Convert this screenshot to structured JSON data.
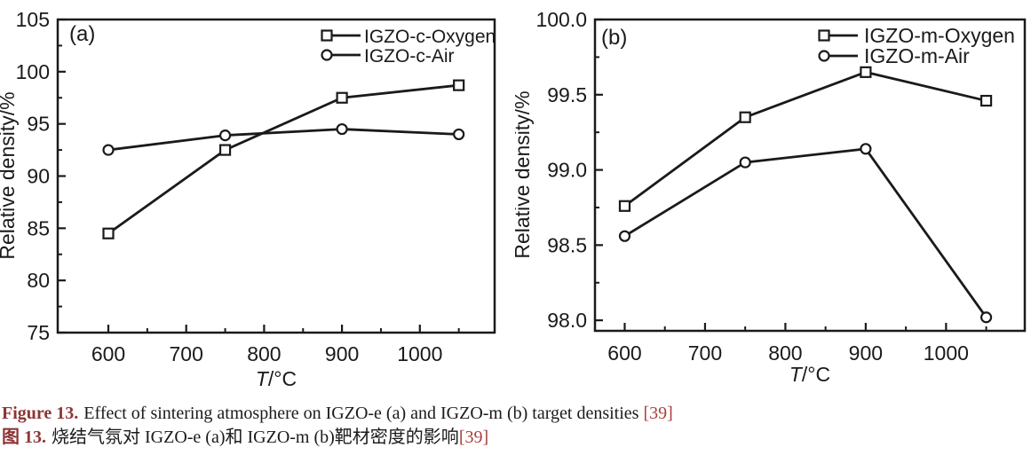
{
  "page": {
    "background": "#ffffff"
  },
  "colors": {
    "ink": "#1a1a1a",
    "caption_label": "#8d3536",
    "reference": "#a8403c"
  },
  "caption": {
    "en": {
      "label": "Figure 13.",
      "text": "Effect of sintering atmosphere on IGZO-e (a) and IGZO-m (b) target densities",
      "ref": "[39]"
    },
    "zh": {
      "label": "图 13.",
      "text": "烧结气氛对 IGZO-e (a)和 IGZO-m (b)靶材密度的影响",
      "ref": "[39]"
    }
  },
  "chart_data": [
    {
      "type": "line",
      "panel_label": "(a)",
      "xlabel": "T/°C",
      "ylabel": "Relative density/%",
      "x": [
        600,
        750,
        900,
        1050
      ],
      "series": [
        {
          "name": "IGZO-c-Oxygen",
          "marker": "square",
          "values": [
            84.5,
            92.5,
            97.5,
            98.7
          ]
        },
        {
          "name": "IGZO-c-Air",
          "marker": "circle",
          "values": [
            92.5,
            93.9,
            94.5,
            94.0
          ]
        }
      ],
      "xlim": [
        535,
        1096
      ],
      "ylim": [
        75,
        105
      ],
      "x_major_ticks": [
        600,
        700,
        800,
        900,
        1000
      ],
      "x_major_labels": [
        "600",
        "700",
        "800",
        "900",
        "1000"
      ],
      "x_minor_ticks": [
        650,
        750,
        850,
        950,
        1050
      ],
      "y_major_ticks": [
        75,
        80,
        85,
        90,
        95,
        100,
        105
      ],
      "y_major_labels": [
        "75",
        "80",
        "85",
        "90",
        "95",
        "100",
        "105"
      ],
      "y_minor_ticks": [
        77.5,
        82.5,
        87.5,
        92.5,
        97.5,
        102.5
      ],
      "legend_position": "top-right",
      "grid": false
    },
    {
      "type": "line",
      "panel_label": "(b)",
      "xlabel": "T/°C",
      "ylabel": "Relative density/%",
      "x": [
        600,
        750,
        900,
        1050
      ],
      "series": [
        {
          "name": "IGZO-m-Oxygen",
          "marker": "square",
          "values": [
            98.76,
            99.35,
            99.65,
            99.46
          ]
        },
        {
          "name": "IGZO-m-Air",
          "marker": "circle",
          "values": [
            98.56,
            99.05,
            99.14,
            98.02
          ]
        }
      ],
      "xlim": [
        563,
        1098
      ],
      "ylim": [
        97.93,
        100.0
      ],
      "x_major_ticks": [
        600,
        700,
        800,
        900,
        1000
      ],
      "x_major_labels": [
        "600",
        "700",
        "800",
        "900",
        "1000"
      ],
      "x_minor_ticks": [
        650,
        750,
        850,
        950,
        1050
      ],
      "y_major_ticks": [
        98.0,
        98.5,
        99.0,
        99.5,
        100.0
      ],
      "y_major_labels": [
        "98.0",
        "98.5",
        "99.0",
        "99.5",
        "100.0"
      ],
      "y_minor_ticks": [
        98.25,
        98.75,
        99.25,
        99.75
      ],
      "legend_position": "top-right",
      "grid": false
    }
  ]
}
